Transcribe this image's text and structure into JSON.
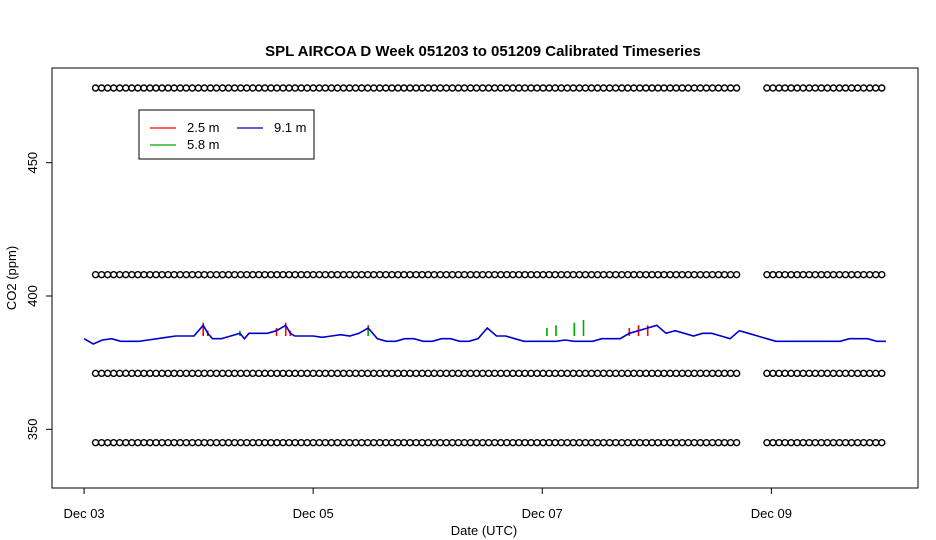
{
  "chart_data": {
    "type": "line",
    "title": "SPL AIRCOA D  Week 051203 to 051209  Calibrated Timeseries",
    "xlabel": "Date (UTC)",
    "ylabel": "CO2 (ppm)",
    "xlim": [
      -0.14,
      3.64
    ],
    "ylim": [
      328.0,
      485.5
    ],
    "x_ticks": [
      {
        "value": 0,
        "label": "Dec 03"
      },
      {
        "value": 1,
        "label": "Dec 05"
      },
      {
        "value": 2,
        "label": "Dec 07"
      },
      {
        "value": 3,
        "label": "Dec 09"
      }
    ],
    "y_ticks": [
      {
        "value": 350,
        "label": "350"
      },
      {
        "value": 400,
        "label": "400"
      },
      {
        "value": 450,
        "label": "450"
      }
    ],
    "legend": {
      "placement": "top-left",
      "entries": [
        {
          "name": "2.5 m",
          "color": "#ff0000"
        },
        {
          "name": "5.8 m",
          "color": "#00aa00"
        },
        {
          "name": "9.1 m",
          "color": "#0000cc"
        }
      ]
    },
    "series": [
      {
        "name": "9.1 m",
        "color": "#0000cc",
        "x": [
          0.0,
          0.04,
          0.08,
          0.12,
          0.16,
          0.2,
          0.24,
          0.28,
          0.32,
          0.36,
          0.4,
          0.44,
          0.48,
          0.52,
          0.54,
          0.56,
          0.6,
          0.64,
          0.68,
          0.7,
          0.72,
          0.76,
          0.8,
          0.84,
          0.88,
          0.9,
          0.92,
          0.96,
          1.0,
          1.04,
          1.08,
          1.12,
          1.16,
          1.2,
          1.24,
          1.28,
          1.32,
          1.36,
          1.4,
          1.44,
          1.48,
          1.52,
          1.56,
          1.6,
          1.64,
          1.68,
          1.72,
          1.76,
          1.8,
          1.84,
          1.88,
          1.92,
          1.96,
          2.0,
          2.02,
          2.06,
          2.1,
          2.14,
          2.18,
          2.22,
          2.26,
          2.3,
          2.34,
          2.38,
          2.42,
          2.46,
          2.5,
          2.54,
          2.58,
          2.62,
          2.66,
          2.7,
          2.74,
          2.78,
          2.82,
          2.86,
          2.9,
          2.94,
          2.98,
          3.02,
          3.06,
          3.1,
          3.14,
          3.18,
          3.22,
          3.26,
          3.3,
          3.34,
          3.38,
          3.42,
          3.46,
          3.5
        ],
        "y": [
          384,
          382,
          383.5,
          384,
          383,
          383,
          383,
          383.5,
          384,
          384.5,
          385,
          385,
          385,
          389,
          386,
          384,
          384,
          385,
          386,
          384,
          386,
          386,
          386,
          387,
          389,
          386,
          385,
          385,
          385,
          384.5,
          385,
          385.5,
          385,
          386,
          388,
          384,
          383,
          383,
          384,
          384,
          383,
          383,
          384,
          384,
          383,
          383,
          384,
          388,
          385,
          385,
          384,
          383,
          383,
          383,
          383,
          383,
          383.5,
          383,
          383,
          383,
          384,
          384,
          384,
          386,
          387,
          388,
          389,
          386,
          387,
          386,
          385,
          386,
          386,
          385,
          384,
          387,
          386,
          385,
          384,
          383,
          383,
          383,
          383,
          383,
          383,
          383,
          383,
          384,
          384,
          384,
          383,
          383
        ]
      },
      {
        "name": "2.5 m",
        "color": "#ff0000",
        "x": [
          0.52,
          0.54,
          0.84,
          0.88,
          0.9,
          1.24,
          2.38,
          2.42,
          2.46
        ],
        "y": [
          390,
          387,
          388,
          390,
          387,
          389,
          388,
          389,
          389
        ]
      },
      {
        "name": "5.8 m",
        "color": "#00aa00",
        "x": [
          0.68,
          0.7,
          1.24,
          2.02,
          2.06,
          2.14,
          2.18
        ],
        "y": [
          387,
          385,
          388,
          388,
          389,
          390,
          391
        ]
      }
    ],
    "calibration_markers": {
      "levels": [
        345,
        371,
        408,
        478
      ],
      "x_start": 0.05,
      "x_end": 3.5,
      "spacing": 0.0264,
      "gap": [
        2.87,
        2.96
      ]
    }
  }
}
